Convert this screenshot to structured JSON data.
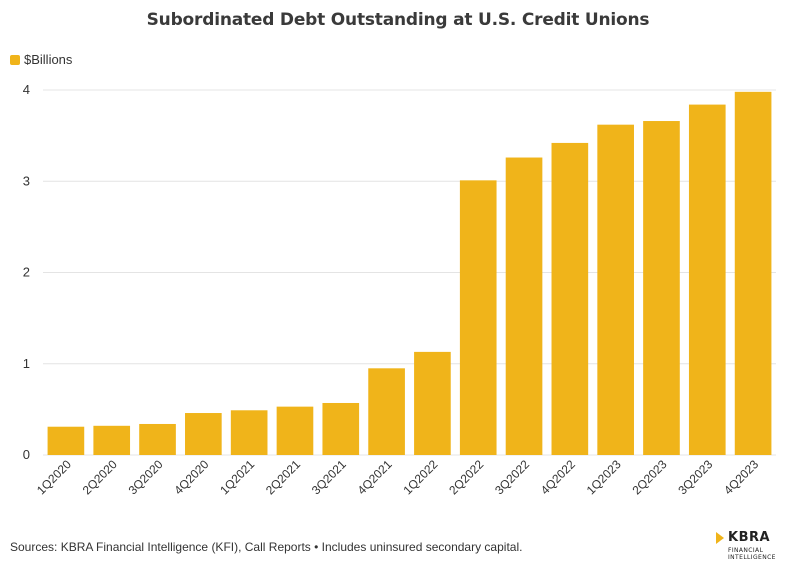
{
  "title": "Subordinated Debt Outstanding at U.S. Credit Unions",
  "legend": {
    "label": "$Billions"
  },
  "footer": "Sources: KBRA Financial Intelligence (KFI), Call Reports • Includes uninsured secondary capital.",
  "logo": {
    "name": "KBRA",
    "line1": "FINANCIAL",
    "line2": "INTELLIGENCE"
  },
  "colors": {
    "bar": "#f0b41a",
    "grid": "#e4e4e4",
    "text": "#333333"
  },
  "chart_data": {
    "type": "bar",
    "title": "Subordinated Debt Outstanding at U.S. Credit Unions",
    "xlabel": "",
    "ylabel": "",
    "ylim": [
      0,
      4
    ],
    "yticks": [
      0,
      1,
      2,
      3,
      4
    ],
    "grid": true,
    "legend_position": "top-left",
    "categories": [
      "1Q2020",
      "2Q2020",
      "3Q2020",
      "4Q2020",
      "1Q2021",
      "2Q2021",
      "3Q2021",
      "4Q2021",
      "1Q2022",
      "2Q2022",
      "3Q2022",
      "4Q2022",
      "1Q2023",
      "2Q2023",
      "3Q2023",
      "4Q2023"
    ],
    "series": [
      {
        "name": "$Billions",
        "values": [
          0.31,
          0.32,
          0.34,
          0.46,
          0.49,
          0.53,
          0.57,
          0.95,
          1.13,
          3.01,
          3.26,
          3.42,
          3.62,
          3.66,
          3.84,
          3.98
        ]
      }
    ]
  }
}
